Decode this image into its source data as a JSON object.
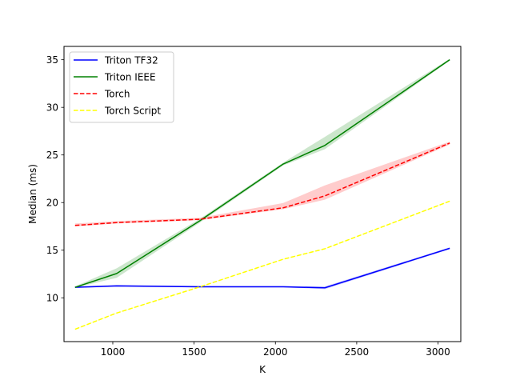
{
  "chart_data": {
    "type": "line",
    "xlabel": "K",
    "ylabel": "Median (ms)",
    "xlim": [
      700,
      3140
    ],
    "ylim": [
      5.4,
      36.4
    ],
    "xticks": [
      1000,
      1500,
      2000,
      2500,
      3000
    ],
    "yticks": [
      10,
      15,
      20,
      25,
      30,
      35
    ],
    "grid": false,
    "legend_position": "top-left",
    "x": [
      768,
      1024,
      1536,
      2048,
      2304,
      3072
    ],
    "series": [
      {
        "name": "Triton TF32",
        "color": "#0000ff",
        "style": "solid",
        "values": [
          11.1,
          11.25,
          11.15,
          11.15,
          11.05,
          15.2
        ],
        "band_low": [
          11.05,
          11.15,
          11.1,
          11.1,
          10.9,
          15.1
        ],
        "band_high": [
          11.2,
          11.35,
          11.25,
          11.25,
          11.2,
          15.3
        ]
      },
      {
        "name": "Triton IEEE",
        "color": "#008000",
        "style": "solid",
        "values": [
          11.1,
          12.55,
          18.1,
          24.05,
          26.0,
          35.0
        ],
        "band_low": [
          11.05,
          12.1,
          17.9,
          23.9,
          25.6,
          34.9
        ],
        "band_high": [
          11.2,
          13.1,
          18.3,
          24.2,
          26.9,
          35.1
        ]
      },
      {
        "name": "Torch",
        "color": "#ff0000",
        "style": "dashed",
        "values": [
          17.6,
          17.9,
          18.25,
          19.45,
          20.7,
          26.25
        ],
        "band_low": [
          17.5,
          17.8,
          18.15,
          19.3,
          20.3,
          26.1
        ],
        "band_high": [
          17.8,
          18.05,
          18.4,
          19.95,
          21.8,
          26.4
        ]
      },
      {
        "name": "Torch Script",
        "color": "#ffff00",
        "style": "dashed",
        "values": [
          6.7,
          8.4,
          11.15,
          14.05,
          15.15,
          20.15
        ],
        "band_low": [
          6.65,
          8.35,
          11.1,
          14.0,
          15.1,
          20.1
        ],
        "band_high": [
          6.75,
          8.45,
          11.2,
          14.1,
          15.2,
          20.2
        ]
      }
    ]
  }
}
